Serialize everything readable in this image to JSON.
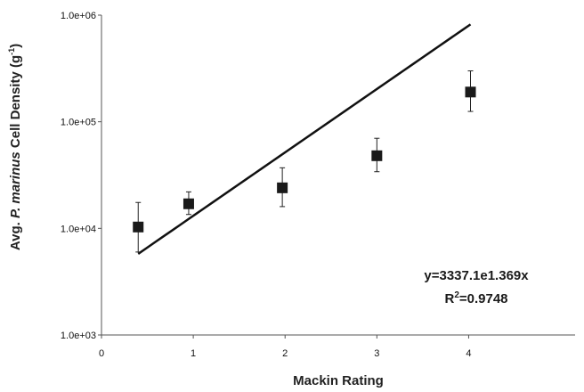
{
  "chart_data": {
    "type": "scatter",
    "xlabel": "Mackin Rating",
    "ylabel": {
      "prefix": "Avg. ",
      "italic": "P. marinus",
      "suffix": " Cell Density (g",
      "sup": "-1",
      "end": ")"
    },
    "xlim": [
      0,
      4.5
    ],
    "ylim": [
      1000,
      1000000
    ],
    "y_scale": "log",
    "x_ticks": [
      0,
      1,
      2,
      3,
      4
    ],
    "x_tick_labels": [
      "0",
      "1",
      "2",
      "3",
      "4"
    ],
    "y_ticks": [
      1000,
      10000,
      100000,
      1000000
    ],
    "y_tick_labels": [
      "1.0e+03",
      "1.0e+04",
      "1.0e+05",
      "1.0e+06"
    ],
    "grid": false,
    "series": [
      {
        "marker": "square",
        "color": "#1a1a1a",
        "points": [
          {
            "x": 0.4,
            "y": 10300,
            "err_low": 6000,
            "err_high": 17500
          },
          {
            "x": 0.95,
            "y": 17000,
            "err_low": 13500,
            "err_high": 22000
          },
          {
            "x": 1.97,
            "y": 24000,
            "err_low": 16000,
            "err_high": 37000
          },
          {
            "x": 3.0,
            "y": 48000,
            "err_low": 34000,
            "err_high": 70000
          },
          {
            "x": 4.02,
            "y": 190000,
            "err_low": 125000,
            "err_high": 300000
          }
        ]
      }
    ],
    "trendline": {
      "type": "exponential",
      "a": 3337.1,
      "b": 1.369,
      "x_range": [
        0.4,
        4.02
      ],
      "equation_label": "y=3337.1e1.369x",
      "r2_prefix": "R",
      "r2_sup": "2",
      "r2_value": "=0.9748"
    }
  }
}
